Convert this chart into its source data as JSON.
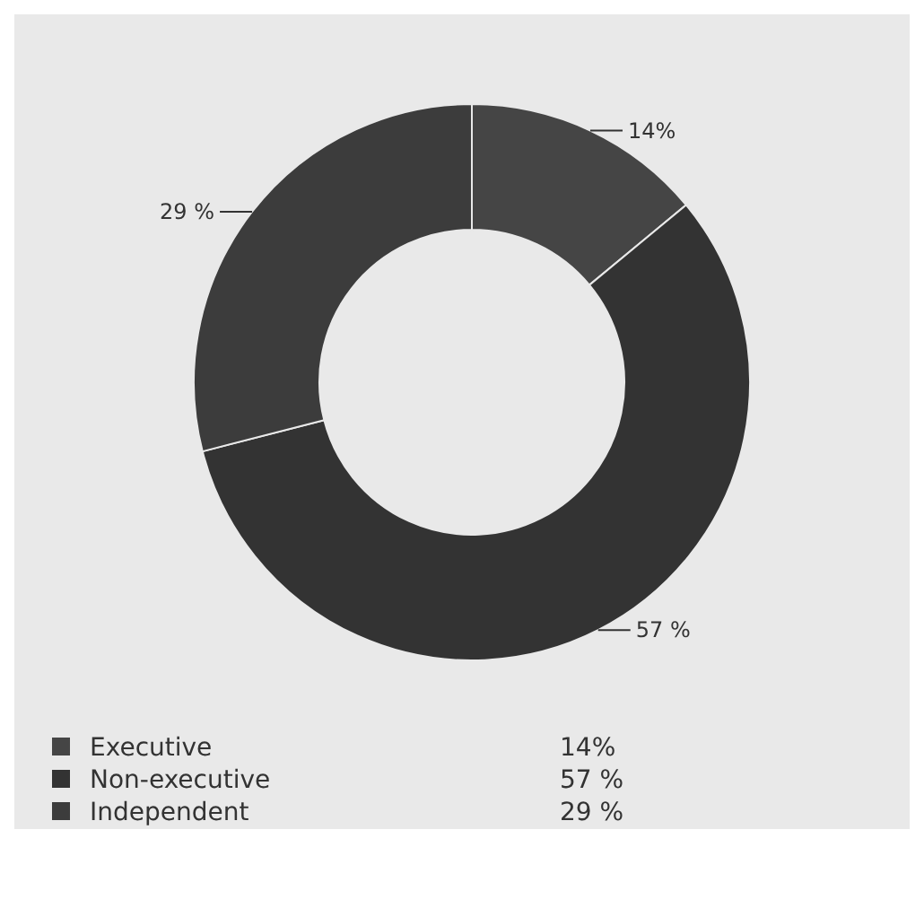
{
  "chart_data": {
    "type": "donut",
    "categories": [
      "Executive",
      "Non-executive",
      "Independent"
    ],
    "values": [
      14,
      57,
      29
    ],
    "colors": [
      "#454545",
      "#333333",
      "#3c3c3c"
    ],
    "value_labels": [
      "14%",
      "57 %",
      "29 %"
    ],
    "legend": "bottom"
  }
}
